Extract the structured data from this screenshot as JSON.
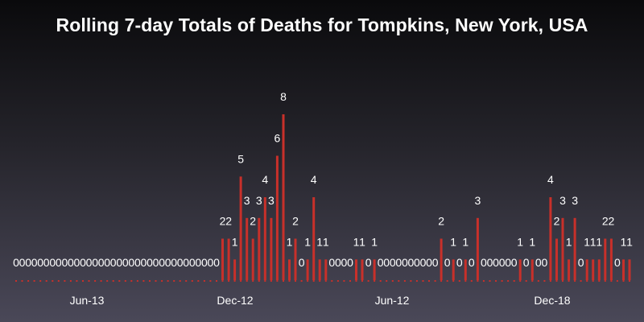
{
  "chart_data": {
    "type": "bar",
    "title": "Rolling 7-day Totals of Deaths for Tompkins, New York, USA",
    "xlabel": "",
    "ylabel": "",
    "ylim": [
      0,
      8
    ],
    "x_tick_labels": [
      "Jun-13",
      "Dec-12",
      "Jun-12",
      "Dec-18"
    ],
    "values": [
      0,
      0,
      0,
      0,
      0,
      0,
      0,
      0,
      0,
      0,
      0,
      0,
      0,
      0,
      0,
      0,
      0,
      0,
      0,
      0,
      0,
      0,
      0,
      0,
      0,
      0,
      0,
      0,
      0,
      0,
      0,
      0,
      0,
      0,
      2,
      2,
      1,
      5,
      3,
      2,
      3,
      4,
      3,
      6,
      8,
      1,
      2,
      0,
      1,
      4,
      1,
      1,
      0,
      0,
      0,
      0,
      1,
      1,
      0,
      1,
      0,
      0,
      0,
      0,
      0,
      0,
      0,
      0,
      0,
      0,
      2,
      0,
      1,
      0,
      1,
      0,
      3,
      0,
      0,
      0,
      0,
      0,
      0,
      1,
      0,
      1,
      0,
      0,
      4,
      2,
      3,
      1,
      3,
      0,
      1,
      1,
      1,
      2,
      2,
      0,
      1,
      1
    ],
    "grid": false,
    "legend": "none",
    "colors": {
      "bar": "#c8302a",
      "text": "#ffffff"
    }
  }
}
